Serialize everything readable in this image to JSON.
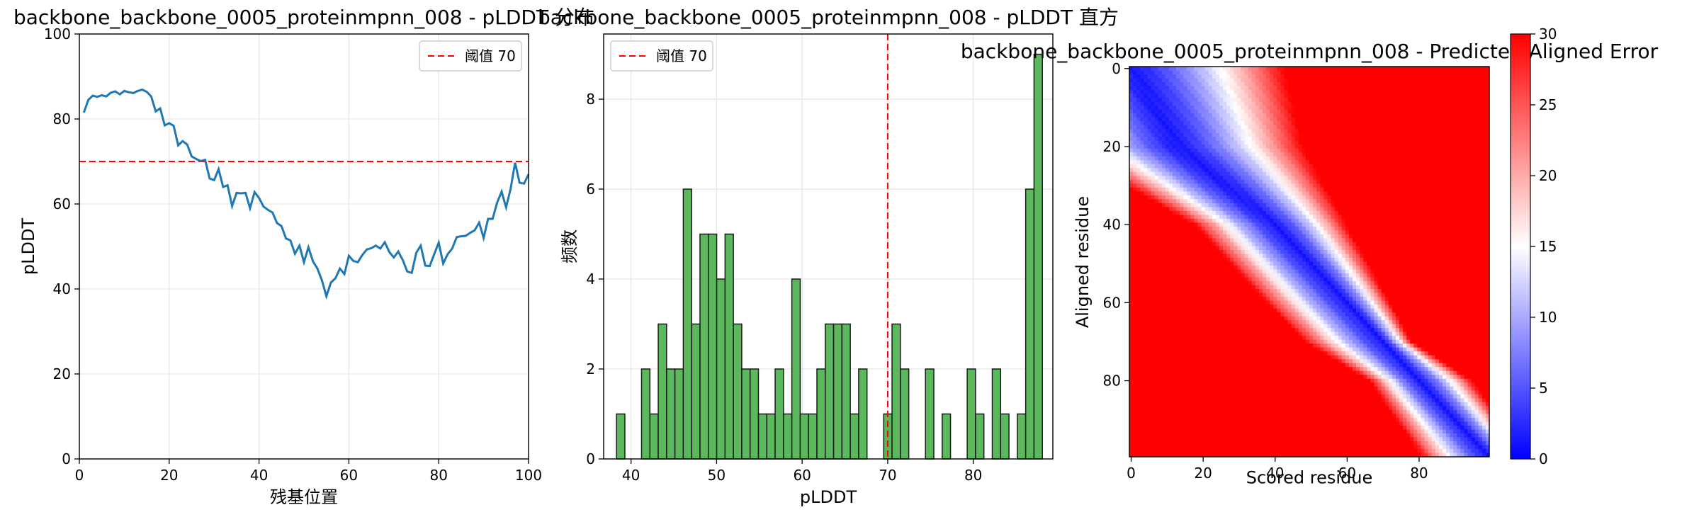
{
  "colors": {
    "line": "#1f77b4",
    "threshold": "#ff0000",
    "hist_fill": "#5cb85c",
    "hist_edge": "#1a1a1a",
    "grid": "#e6e6e6",
    "pae_low": "#0000ff",
    "pae_mid": "#ffffff",
    "pae_high": "#ff0000"
  },
  "chart_data": [
    {
      "type": "line",
      "title": "backbone_backbone_0005_proteinmpnn_008 - pLDDT 分布",
      "xlabel": "残基位置",
      "ylabel": "pLDDT",
      "xlim": [
        0,
        100
      ],
      "ylim": [
        0,
        100
      ],
      "xticks": [
        0,
        20,
        40,
        60,
        80,
        100
      ],
      "yticks": [
        0,
        20,
        40,
        60,
        80,
        100
      ],
      "grid": true,
      "legend_position": "top-right",
      "threshold": {
        "value": 70,
        "label": "阈值 70"
      },
      "x": [
        1,
        2,
        3,
        4,
        5,
        6,
        7,
        8,
        9,
        10,
        11,
        12,
        13,
        14,
        15,
        16,
        17,
        18,
        19,
        20,
        21,
        22,
        23,
        24,
        25,
        26,
        27,
        28,
        29,
        30,
        31,
        32,
        33,
        34,
        35,
        36,
        37,
        38,
        39,
        40,
        41,
        42,
        43,
        44,
        45,
        46,
        47,
        48,
        49,
        50,
        51,
        52,
        53,
        54,
        55,
        56,
        57,
        58,
        59,
        60,
        61,
        62,
        63,
        64,
        65,
        66,
        67,
        68,
        69,
        70,
        71,
        72,
        73,
        74,
        75,
        76,
        77,
        78,
        79,
        80,
        81,
        82,
        83,
        84,
        85,
        86,
        87,
        88,
        89,
        90,
        91,
        92,
        93,
        94,
        95,
        96,
        97,
        98,
        99,
        100
      ],
      "y": [
        81.5,
        84.5,
        85.5,
        85.2,
        85.6,
        85.3,
        86.2,
        86.5,
        85.8,
        86.6,
        86.3,
        86.1,
        86.6,
        86.9,
        86.4,
        85.3,
        81.8,
        82.5,
        78.5,
        79.0,
        78.4,
        73.8,
        74.8,
        74.0,
        71.2,
        70.6,
        70.1,
        70.4,
        66.0,
        65.6,
        68.2,
        64.0,
        64.4,
        59.5,
        62.6,
        62.5,
        62.6,
        59.0,
        62.8,
        61.4,
        59.4,
        58.6,
        58.0,
        55.5,
        54.8,
        51.9,
        51.4,
        48.3,
        50.2,
        46.3,
        49.8,
        46.5,
        44.8,
        42.0,
        38.3,
        41.5,
        42.5,
        44.8,
        43.5,
        47.8,
        46.6,
        46.3,
        48.0,
        49.3,
        49.6,
        50.2,
        49.5,
        51.0,
        48.7,
        47.4,
        48.8,
        46.8,
        44.1,
        43.8,
        48.5,
        50.2,
        45.5,
        45.4,
        48.2,
        50.9,
        46.0,
        48.2,
        49.5,
        52.2,
        52.4,
        52.5,
        53.2,
        53.8,
        55.6,
        52.0,
        56.5,
        56.5,
        60.3,
        62.9,
        59.2,
        63.5,
        69.7,
        65.0,
        64.8,
        67.0
      ]
    },
    {
      "type": "bar",
      "title": "backbone_backbone_0005_proteinmpnn_008 - pLDDT 直方",
      "xlabel": "pLDDT",
      "ylabel": "频数",
      "xlim": [
        36.8,
        89.3
      ],
      "ylim": [
        0,
        9.45
      ],
      "xticks": [
        40,
        50,
        60,
        70,
        80
      ],
      "yticks": [
        0,
        2,
        4,
        6,
        8
      ],
      "grid": true,
      "legend_position": "top-left",
      "threshold": {
        "value": 70,
        "label": "阈值 70"
      },
      "bin_start": 38.3,
      "bin_width": 0.976,
      "counts": [
        1,
        0,
        0,
        2,
        1,
        3,
        2,
        2,
        6,
        3,
        5,
        5,
        4,
        5,
        3,
        2,
        2,
        1,
        1,
        2,
        1,
        4,
        1,
        1,
        2,
        3,
        3,
        3,
        1,
        2,
        0,
        0,
        1,
        3,
        2,
        0,
        0,
        2,
        0,
        1,
        0,
        0,
        2,
        1,
        0,
        2,
        1,
        0,
        1,
        6,
        9
      ]
    },
    {
      "type": "heatmap",
      "title": "backbone_backbone_0005_proteinmpnn_008 - Predicted Aligned Error",
      "xlabel": "Scored residue",
      "ylabel": "Aligned residue",
      "n": 100,
      "xticks": [
        0,
        20,
        40,
        60,
        80
      ],
      "yticks": [
        0,
        20,
        40,
        60,
        80
      ],
      "colorbar": {
        "min": 0,
        "max": 30,
        "ticks": [
          0,
          5,
          10,
          15,
          20,
          25,
          30
        ]
      },
      "center_curve": [
        [
          0,
          0
        ],
        [
          20,
          13
        ],
        [
          40,
          40
        ],
        [
          60,
          60
        ],
        [
          70,
          70
        ],
        [
          80,
          80
        ],
        [
          99,
          99
        ]
      ],
      "upper_band": [
        [
          0,
          43
        ],
        [
          20,
          48
        ],
        [
          40,
          60
        ],
        [
          60,
          72
        ],
        [
          70,
          78
        ],
        [
          80,
          95
        ],
        [
          99,
          110
        ]
      ],
      "lower_band": [
        [
          0,
          -30
        ],
        [
          20,
          -20
        ],
        [
          40,
          17
        ],
        [
          60,
          37
        ],
        [
          70,
          48
        ],
        [
          80,
          66
        ],
        [
          99,
          80
        ]
      ]
    }
  ]
}
